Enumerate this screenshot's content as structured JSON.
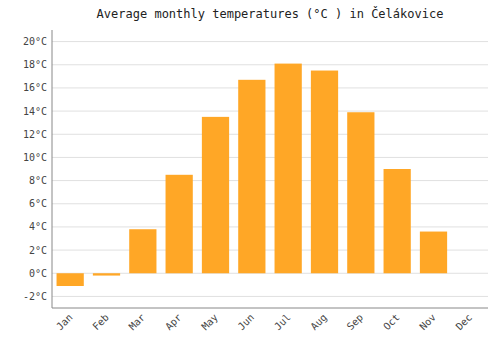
{
  "chart_data": {
    "type": "bar",
    "title": "Average monthly temperatures (°C ) in Čelákovice",
    "categories": [
      "Jan",
      "Feb",
      "Mar",
      "Apr",
      "May",
      "Jun",
      "Jul",
      "Aug",
      "Sep",
      "Oct",
      "Nov",
      "Dec"
    ],
    "values": [
      -1.1,
      -0.2,
      3.8,
      8.5,
      13.5,
      16.7,
      18.1,
      17.5,
      13.9,
      9.0,
      3.6,
      0.0
    ],
    "color": "#FFA726",
    "ylim": [
      -3.0,
      21.0
    ],
    "yticks": [
      {
        "value": 20,
        "label": "20°C"
      },
      {
        "value": 18,
        "label": "18°C"
      },
      {
        "value": 16,
        "label": "16°C"
      },
      {
        "value": 14,
        "label": "14°C"
      },
      {
        "value": 12,
        "label": "12°C"
      },
      {
        "value": 10,
        "label": "10°C"
      },
      {
        "value": 8,
        "label": "8°C"
      },
      {
        "value": 6,
        "label": "6°C"
      },
      {
        "value": 4,
        "label": "4°C"
      },
      {
        "value": 2,
        "label": "2°C"
      },
      {
        "value": 0,
        "label": "0°C"
      },
      {
        "value": -2,
        "label": "-2°C"
      }
    ],
    "grid": true
  }
}
